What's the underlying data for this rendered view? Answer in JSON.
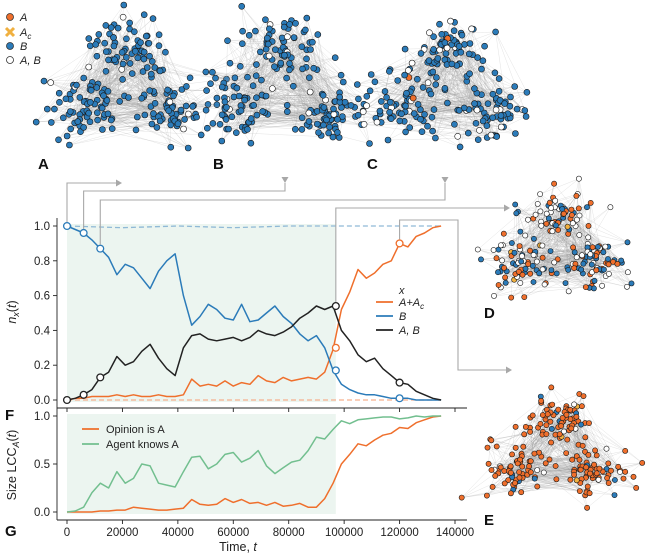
{
  "colors": {
    "A": "#ef6f2c",
    "Ac": "#f0b040",
    "B": "#2b7bb9",
    "AB": "#222222",
    "B_light": "#8fb9d6",
    "A_light": "#f6b08e",
    "green": "#72bf8f",
    "shade": "#eaf4ee"
  },
  "network_legend": [
    {
      "label": "A",
      "marker": "circle",
      "color": "#ef6f2c"
    },
    {
      "label": "Ac",
      "marker": "cross",
      "color": "#f0b040"
    },
    {
      "label": "B",
      "marker": "circle",
      "color": "#2b7bb9"
    },
    {
      "label": "A, B",
      "marker": "circle",
      "color": "#ffffff"
    }
  ],
  "panels": {
    "A": "A",
    "B": "B",
    "C": "C",
    "D": "D",
    "E": "E",
    "F": "F",
    "G": "G"
  },
  "chart_data": [
    {
      "type": "line",
      "panel": "F",
      "ylabel": "n_x(t)",
      "xlim": [
        0,
        140000
      ],
      "ylim": [
        0,
        1.0
      ],
      "yticks": [
        "0.0",
        "0.2",
        "0.4",
        "0.6",
        "0.8",
        "1.0"
      ],
      "legend_title": "x",
      "legend_position": "center-right",
      "shaded_region": [
        0,
        97000
      ],
      "reference_lines": [
        {
          "color": "#8fb9d6",
          "y": [
            1.0,
            0.99,
            1.0,
            0.99,
            1.0,
            1.0,
            1.0
          ]
        },
        {
          "color": "#f6b08e",
          "y": [
            0.0,
            0.0,
            0.0,
            0.0,
            0.0,
            0.0,
            0.0
          ]
        }
      ],
      "x": [
        0,
        3000,
        6000,
        9000,
        12000,
        15000,
        18000,
        21000,
        24000,
        27000,
        30000,
        33000,
        36000,
        39000,
        42000,
        45000,
        48000,
        51000,
        54000,
        57000,
        60000,
        63000,
        66000,
        69000,
        72000,
        75000,
        78000,
        81000,
        84000,
        87000,
        90000,
        93000,
        96000,
        99000,
        102000,
        105000,
        108000,
        111000,
        114000,
        117000,
        120000,
        123000,
        126000,
        129000,
        132000,
        135000
      ],
      "series": [
        {
          "name": "A+Ac",
          "color": "#ef6f2c",
          "values": [
            0.0,
            0.01,
            0.01,
            0.02,
            0.02,
            0.02,
            0.03,
            0.02,
            0.03,
            0.02,
            0.02,
            0.03,
            0.02,
            0.02,
            0.03,
            0.12,
            0.08,
            0.09,
            0.08,
            0.11,
            0.08,
            0.1,
            0.09,
            0.14,
            0.11,
            0.1,
            0.13,
            0.11,
            0.12,
            0.13,
            0.12,
            0.16,
            0.29,
            0.52,
            0.62,
            0.75,
            0.7,
            0.73,
            0.78,
            0.8,
            0.9,
            0.88,
            0.94,
            0.96,
            0.99,
            1.0
          ]
        },
        {
          "name": "B",
          "color": "#2b7bb9",
          "values": [
            1.0,
            0.98,
            0.96,
            0.92,
            0.87,
            0.82,
            0.72,
            0.78,
            0.76,
            0.7,
            0.64,
            0.74,
            0.8,
            0.84,
            0.6,
            0.43,
            0.48,
            0.55,
            0.52,
            0.47,
            0.46,
            0.55,
            0.45,
            0.46,
            0.5,
            0.54,
            0.48,
            0.44,
            0.38,
            0.34,
            0.37,
            0.3,
            0.17,
            0.09,
            0.06,
            0.04,
            0.03,
            0.03,
            0.02,
            0.01,
            0.01,
            0.01,
            0.0,
            0.0,
            0.0,
            0.0
          ]
        },
        {
          "name": "A, B",
          "color": "#222222",
          "values": [
            0.0,
            0.01,
            0.03,
            0.06,
            0.13,
            0.16,
            0.25,
            0.2,
            0.22,
            0.28,
            0.32,
            0.24,
            0.18,
            0.14,
            0.3,
            0.37,
            0.38,
            0.35,
            0.34,
            0.35,
            0.36,
            0.34,
            0.36,
            0.4,
            0.38,
            0.37,
            0.39,
            0.42,
            0.47,
            0.5,
            0.54,
            0.52,
            0.54,
            0.4,
            0.34,
            0.26,
            0.22,
            0.24,
            0.18,
            0.14,
            0.1,
            0.09,
            0.05,
            0.03,
            0.01,
            0.0
          ]
        }
      ],
      "markers": [
        {
          "series": "B",
          "x": 0,
          "y": 1.0
        },
        {
          "series": "B",
          "x": 6000,
          "y": 0.96
        },
        {
          "series": "B",
          "x": 12000,
          "y": 0.87
        },
        {
          "series": "B",
          "x": 97000,
          "y": 0.17
        },
        {
          "series": "B",
          "x": 120000,
          "y": 0.01
        },
        {
          "series": "A, B",
          "x": 0,
          "y": 0.0
        },
        {
          "series": "A, B",
          "x": 6000,
          "y": 0.03
        },
        {
          "series": "A, B",
          "x": 12000,
          "y": 0.13
        },
        {
          "series": "A, B",
          "x": 97000,
          "y": 0.54
        },
        {
          "series": "A, B",
          "x": 120000,
          "y": 0.1
        },
        {
          "series": "A+Ac",
          "x": 97000,
          "y": 0.3
        },
        {
          "series": "A+Ac",
          "x": 120000,
          "y": 0.9
        }
      ]
    },
    {
      "type": "line",
      "panel": "G",
      "xlabel": "Time, t",
      "ylabel": "Size LCC_A(t)",
      "xlim": [
        0,
        140000
      ],
      "ylim": [
        0,
        1.0
      ],
      "xticks": [
        "0",
        "20000",
        "40000",
        "60000",
        "80000",
        "100000",
        "120000",
        "140000"
      ],
      "yticks": [
        "0.0",
        "0.5",
        "1.0"
      ],
      "legend_position": "top-left",
      "shaded_region": [
        0,
        97000
      ],
      "x": [
        0,
        3000,
        6000,
        9000,
        12000,
        15000,
        18000,
        21000,
        24000,
        27000,
        30000,
        33000,
        36000,
        39000,
        42000,
        45000,
        48000,
        51000,
        54000,
        57000,
        60000,
        63000,
        66000,
        69000,
        72000,
        75000,
        78000,
        81000,
        84000,
        87000,
        90000,
        93000,
        96000,
        99000,
        102000,
        105000,
        108000,
        111000,
        114000,
        117000,
        120000,
        123000,
        126000,
        129000,
        132000,
        135000
      ],
      "series": [
        {
          "name": "Opinion is A",
          "color": "#ef6f2c",
          "values": [
            0.0,
            0.0,
            0.0,
            0.0,
            0.01,
            0.01,
            0.02,
            0.02,
            0.05,
            0.04,
            0.03,
            0.02,
            0.02,
            0.03,
            0.04,
            0.13,
            0.08,
            0.07,
            0.08,
            0.14,
            0.1,
            0.13,
            0.09,
            0.1,
            0.07,
            0.1,
            0.06,
            0.07,
            0.09,
            0.05,
            0.05,
            0.14,
            0.3,
            0.5,
            0.6,
            0.71,
            0.69,
            0.75,
            0.8,
            0.82,
            0.88,
            0.87,
            0.93,
            0.96,
            0.99,
            1.0
          ]
        },
        {
          "name": "Agent knows A",
          "color": "#72bf8f",
          "values": [
            0.0,
            0.01,
            0.05,
            0.2,
            0.3,
            0.25,
            0.42,
            0.3,
            0.35,
            0.5,
            0.48,
            0.3,
            0.28,
            0.26,
            0.42,
            0.57,
            0.58,
            0.45,
            0.5,
            0.6,
            0.62,
            0.52,
            0.56,
            0.64,
            0.48,
            0.4,
            0.46,
            0.52,
            0.54,
            0.64,
            0.78,
            0.76,
            0.86,
            0.95,
            0.92,
            0.96,
            0.97,
            0.98,
            0.99,
            0.99,
            0.97,
            0.98,
            1.0,
            0.99,
            1.0,
            1.0
          ]
        }
      ]
    }
  ]
}
